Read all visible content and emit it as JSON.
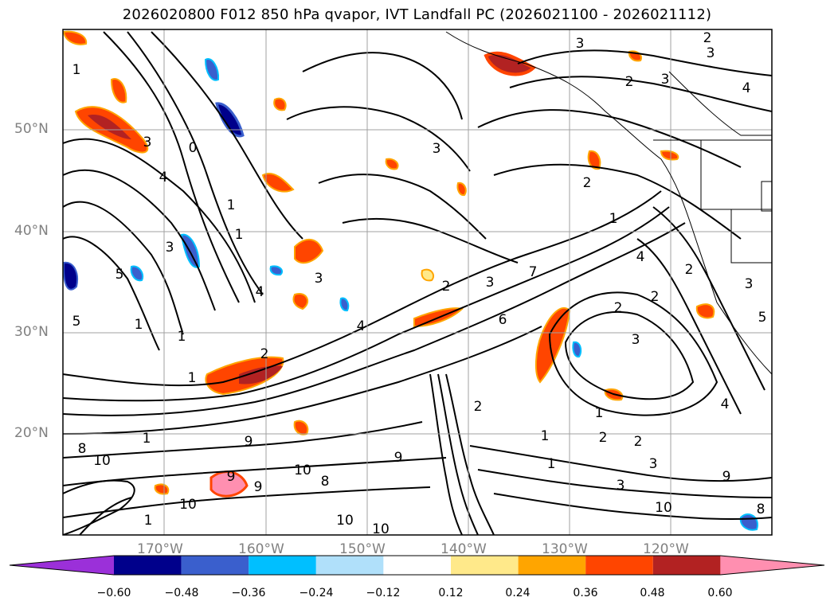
{
  "title": "2026020800 F012 850 hPa qvapor, IVT Landfall PC (2026021100 - 2026021112)",
  "lat_labels": [
    "50°N",
    "40°N",
    "30°N",
    "20°N"
  ],
  "lon_labels": [
    "170°W",
    "160°W",
    "150°W",
    "140°W",
    "130°W",
    "120°W"
  ],
  "colorbar": {
    "extend": "both",
    "tick_labels": [
      "−0.60",
      "−0.48",
      "−0.36",
      "−0.24",
      "−0.12",
      "0.12",
      "0.24",
      "0.36",
      "0.48",
      "0.60"
    ],
    "colors": [
      "#9b30d9",
      "#00008b",
      "#3a5fcd",
      "#00bfff",
      "#b0e0fa",
      "#ffffff",
      "#ffe98a",
      "#ffa500",
      "#ff4500",
      "#b22222",
      "#ff8fb0"
    ]
  },
  "contour_labels": [
    "2",
    "3",
    "3",
    "2",
    "3",
    "4",
    "3",
    "0",
    "1",
    "1",
    "1",
    "4",
    "3",
    "3",
    "5",
    "1",
    "3",
    "2",
    "1",
    "1",
    "2",
    "3",
    "4",
    "7",
    "5",
    "6",
    "4",
    "1",
    "2",
    "3",
    "2",
    "1",
    "1",
    "2",
    "3",
    "1",
    "2",
    "4",
    "9",
    "8",
    "9",
    "10",
    "9",
    "10",
    "10",
    "10",
    "8",
    "9",
    "10",
    "1",
    "2",
    "3",
    "9",
    "10",
    "8",
    "5",
    "4",
    "2",
    "3",
    "2",
    "1"
  ],
  "map_features": {
    "projection": "latitude-longitude",
    "gridlines": true,
    "coastlines": true,
    "state_borders": true
  }
}
